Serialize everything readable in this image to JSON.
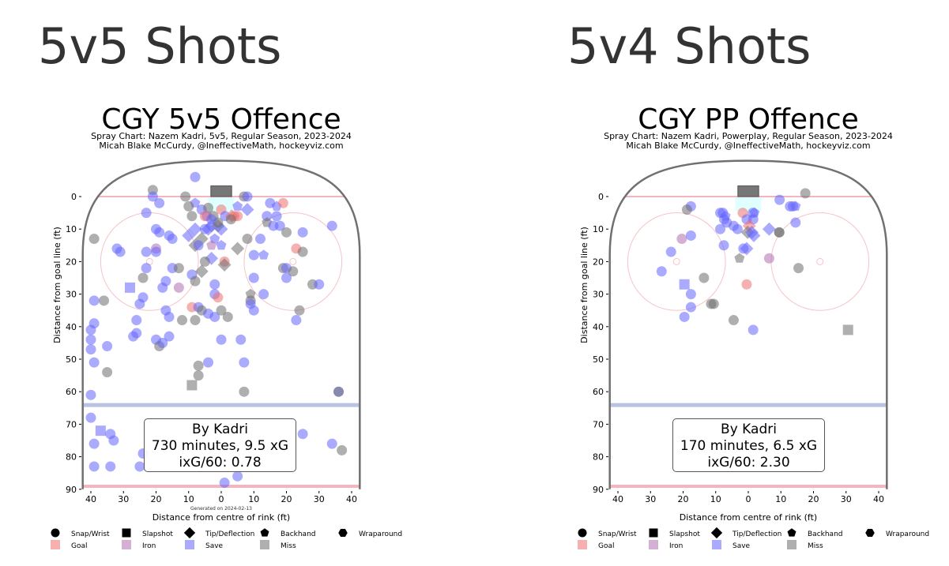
{
  "headings": [
    "5v5 Shots",
    "5v4 Shots"
  ],
  "colors": {
    "save": "#6464ff",
    "miss": "#6e6e6e",
    "goal": "#f07070",
    "iron": "#b070b0",
    "goal_line": "#f2b6c0",
    "blue_line": "#b8c4e0",
    "board": "#707070",
    "crease": "#e0ffff"
  },
  "legend": {
    "shapes": [
      {
        "key": "c",
        "label": "Snap/Wrist"
      },
      {
        "key": "s",
        "label": "Slapshot"
      },
      {
        "key": "d",
        "label": "Tip/Deflection"
      },
      {
        "key": "p",
        "label": "Backhand"
      },
      {
        "key": "h",
        "label": "Wraparound"
      }
    ],
    "outcomes": [
      {
        "key": "goal",
        "label": "Goal"
      },
      {
        "key": "iron",
        "label": "Iron"
      },
      {
        "key": "save",
        "label": "Save"
      },
      {
        "key": "miss",
        "label": "Miss"
      }
    ]
  },
  "chart_data": [
    {
      "type": "scatter",
      "title": "CGY 5v5 Offence",
      "subtitle1": "Spray Chart: Nazem Kadri, 5v5, Regular Season, 2023-2024",
      "subtitle2": "Micah Blake McCurdy, @IneffectiveMath, hockeyviz.com",
      "xlabel": "Distance from centre of rink (ft)",
      "ylabel": "Distance from goal line (ft)",
      "generated": "Generated on 2024-02-13",
      "xticks": [
        "40",
        "30",
        "20",
        "10",
        "0",
        "10",
        "20",
        "30",
        "40"
      ],
      "yticks": [
        "0",
        "10",
        "20",
        "30",
        "40",
        "50",
        "60",
        "70",
        "80",
        "90"
      ],
      "xlim": [
        -42.5,
        42.5
      ],
      "ylim": [
        -11,
        90
      ],
      "stats": [
        "By Kadri",
        "730 minutes, 9.5 xG",
        "ixG/60: 0.78"
      ],
      "points": [
        [
          -8,
          -6,
          "c",
          "save"
        ],
        [
          -21,
          -2,
          "c",
          "miss"
        ],
        [
          -21,
          0,
          "c",
          "save"
        ],
        [
          -19,
          2,
          "c",
          "save"
        ],
        [
          -11,
          0,
          "c",
          "miss"
        ],
        [
          7,
          0,
          "c",
          "miss"
        ],
        [
          8,
          0,
          "c",
          "save"
        ],
        [
          -8,
          2,
          "p",
          "save"
        ],
        [
          -10,
          3,
          "c",
          "miss"
        ],
        [
          -6,
          4,
          "c",
          "save"
        ],
        [
          -4,
          3.5,
          "c",
          "miss"
        ],
        [
          0,
          4,
          "c",
          "goal"
        ],
        [
          -9,
          6,
          "c",
          "miss"
        ],
        [
          -5,
          6,
          "c",
          "goal"
        ],
        [
          -4.4,
          6,
          "c",
          "iron"
        ],
        [
          -2.4,
          6,
          "c",
          "miss"
        ],
        [
          1.2,
          6,
          "c",
          "save"
        ],
        [
          3.2,
          6,
          "d",
          "goal"
        ],
        [
          4,
          6,
          "c",
          "goal"
        ],
        [
          5,
          6,
          "c",
          "goal"
        ],
        [
          3,
          7,
          "c",
          "miss"
        ],
        [
          5,
          3,
          "p",
          "save"
        ],
        [
          8,
          4,
          "d",
          "save"
        ],
        [
          15,
          2,
          "c",
          "save"
        ],
        [
          17,
          3,
          "p",
          "save"
        ],
        [
          19,
          2,
          "c",
          "goal"
        ],
        [
          14,
          6,
          "c",
          "save"
        ],
        [
          17,
          6,
          "c",
          "save"
        ],
        [
          14,
          8,
          "p",
          "miss"
        ],
        [
          16,
          9,
          "c",
          "save"
        ],
        [
          18,
          9,
          "c",
          "save"
        ],
        [
          20,
          11,
          "c",
          "miss"
        ],
        [
          25,
          11,
          "c",
          "save"
        ],
        [
          34,
          9,
          "c",
          "save"
        ],
        [
          -23,
          5,
          "c",
          "save"
        ],
        [
          -8,
          10,
          "d",
          "save"
        ],
        [
          -10,
          12,
          "d",
          "save"
        ],
        [
          -5,
          10,
          "c",
          "save"
        ],
        [
          -4,
          10,
          "d",
          "save"
        ],
        [
          -1,
          9,
          "d",
          "miss"
        ],
        [
          -3,
          9,
          "d",
          "save"
        ],
        [
          0,
          10,
          "d",
          "save"
        ],
        [
          -1,
          8,
          "c",
          "miss"
        ],
        [
          -3,
          7,
          "c",
          "save"
        ],
        [
          -20,
          10,
          "c",
          "save"
        ],
        [
          -19,
          11,
          "c",
          "save"
        ],
        [
          -16,
          12,
          "c",
          "save"
        ],
        [
          -15,
          13,
          "c",
          "save"
        ],
        [
          -39,
          13,
          "c",
          "miss"
        ],
        [
          -6,
          13,
          "d",
          "miss"
        ],
        [
          -8,
          15,
          "d",
          "miss"
        ],
        [
          -7,
          15,
          "c",
          "save"
        ],
        [
          -2,
          13,
          "p",
          "save"
        ],
        [
          -3,
          15,
          "p",
          "iron"
        ],
        [
          0,
          15,
          "p",
          "save"
        ],
        [
          8,
          13,
          "c",
          "miss"
        ],
        [
          12,
          13,
          "c",
          "save"
        ],
        [
          5,
          16,
          "d",
          "miss"
        ],
        [
          -32,
          16,
          "c",
          "save"
        ],
        [
          -31,
          17,
          "c",
          "save"
        ],
        [
          -20,
          16,
          "c",
          "iron"
        ],
        [
          -20,
          17,
          "c",
          "save"
        ],
        [
          -23,
          17,
          "c",
          "save"
        ],
        [
          10,
          18,
          "c",
          "save"
        ],
        [
          13,
          18,
          "p",
          "save"
        ],
        [
          23,
          16,
          "c",
          "goal"
        ],
        [
          25,
          17,
          "c",
          "miss"
        ],
        [
          -3,
          19,
          "d",
          "save"
        ],
        [
          1,
          20,
          "c",
          "goal"
        ],
        [
          1,
          21,
          "d",
          "miss"
        ],
        [
          -5,
          20,
          "c",
          "miss"
        ],
        [
          -6,
          23,
          "d",
          "miss"
        ],
        [
          -23,
          22,
          "c",
          "save"
        ],
        [
          -15,
          22,
          "c",
          "save"
        ],
        [
          -13,
          22,
          "c",
          "miss"
        ],
        [
          19,
          22,
          "c",
          "miss"
        ],
        [
          20,
          22,
          "c",
          "save"
        ],
        [
          22,
          23,
          "c",
          "miss"
        ],
        [
          -9,
          24,
          "c",
          "save"
        ],
        [
          -8,
          26,
          "c",
          "miss"
        ],
        [
          -24,
          25,
          "c",
          "miss"
        ],
        [
          10,
          25,
          "c",
          "save"
        ],
        [
          20,
          25,
          "c",
          "save"
        ],
        [
          -17,
          26,
          "c",
          "save"
        ],
        [
          -28,
          28,
          "s",
          "save"
        ],
        [
          -13,
          28,
          "c",
          "iron"
        ],
        [
          -18,
          28,
          "c",
          "save"
        ],
        [
          -2,
          27,
          "c",
          "save"
        ],
        [
          28,
          27,
          "c",
          "miss"
        ],
        [
          30,
          27,
          "c",
          "save"
        ],
        [
          -39,
          32,
          "c",
          "save"
        ],
        [
          -36,
          32,
          "c",
          "miss"
        ],
        [
          -24,
          31,
          "c",
          "save"
        ],
        [
          -25,
          33,
          "c",
          "save"
        ],
        [
          -2,
          30,
          "c",
          "save"
        ],
        [
          -1,
          31,
          "c",
          "goal"
        ],
        [
          9,
          30,
          "p",
          "miss"
        ],
        [
          9,
          32,
          "c",
          "miss"
        ],
        [
          9,
          33,
          "c",
          "save"
        ],
        [
          10,
          35,
          "c",
          "save"
        ],
        [
          13,
          30,
          "c",
          "save"
        ],
        [
          24,
          35,
          "c",
          "miss"
        ],
        [
          -17,
          35,
          "c",
          "save"
        ],
        [
          -16,
          37,
          "c",
          "save"
        ],
        [
          -9,
          34,
          "c",
          "goal"
        ],
        [
          -7,
          34,
          "c",
          "save"
        ],
        [
          -6,
          35,
          "c",
          "miss"
        ],
        [
          -4,
          36,
          "c",
          "save"
        ],
        [
          -2,
          37,
          "c",
          "save"
        ],
        [
          0,
          35,
          "c",
          "miss"
        ],
        [
          2,
          37,
          "c",
          "miss"
        ],
        [
          -26,
          38,
          "c",
          "save"
        ],
        [
          -12,
          38,
          "c",
          "miss"
        ],
        [
          -8,
          38,
          "c",
          "miss"
        ],
        [
          23,
          38,
          "c",
          "save"
        ],
        [
          -39,
          39,
          "c",
          "save"
        ],
        [
          -40,
          41,
          "c",
          "save"
        ],
        [
          -40,
          44,
          "c",
          "save"
        ],
        [
          -40,
          47,
          "c",
          "save"
        ],
        [
          -39,
          51,
          "c",
          "save"
        ],
        [
          -35,
          54,
          "c",
          "miss"
        ],
        [
          -35,
          46,
          "c",
          "save"
        ],
        [
          -27,
          43,
          "c",
          "save"
        ],
        [
          -26,
          42,
          "c",
          "save"
        ],
        [
          -20,
          44,
          "c",
          "save"
        ],
        [
          -19,
          46,
          "c",
          "miss"
        ],
        [
          -18,
          45,
          "c",
          "save"
        ],
        [
          -16,
          43,
          "c",
          "save"
        ],
        [
          0,
          44,
          "c",
          "save"
        ],
        [
          6,
          44,
          "c",
          "save"
        ],
        [
          -4,
          51,
          "c",
          "save"
        ],
        [
          -7,
          52,
          "c",
          "miss"
        ],
        [
          -7,
          55,
          "c",
          "miss"
        ],
        [
          -9,
          58,
          "s",
          "miss"
        ],
        [
          7,
          51,
          "c",
          "save"
        ],
        [
          7,
          60,
          "c",
          "miss"
        ],
        [
          -40,
          61,
          "c",
          "save"
        ],
        [
          36,
          60,
          "c",
          "save"
        ],
        [
          36,
          60,
          "c",
          "miss"
        ],
        [
          -40,
          68,
          "c",
          "save"
        ],
        [
          -39,
          76,
          "c",
          "save"
        ],
        [
          -37,
          72,
          "s",
          "save"
        ],
        [
          -34,
          73,
          "c",
          "save"
        ],
        [
          -33,
          75,
          "c",
          "save"
        ],
        [
          -39,
          83,
          "c",
          "save"
        ],
        [
          -34,
          83,
          "c",
          "save"
        ],
        [
          -25,
          83,
          "c",
          "save"
        ],
        [
          -24,
          79,
          "c",
          "save"
        ],
        [
          25,
          73,
          "c",
          "save"
        ],
        [
          34,
          76,
          "c",
          "save"
        ],
        [
          37,
          78,
          "c",
          "miss"
        ],
        [
          5,
          86,
          "c",
          "save"
        ],
        [
          1,
          88,
          "c",
          "save"
        ]
      ]
    },
    {
      "type": "scatter",
      "title": "CGY PP Offence",
      "subtitle1": "Spray Chart: Nazem Kadri, Powerplay, Regular Season, 2023-2024",
      "subtitle2": "Micah Blake McCurdy, @IneffectiveMath, hockeyviz.com",
      "xlabel": "Distance from centre of rink (ft)",
      "ylabel": "Distance from goal line (ft)",
      "xticks": [
        "40",
        "30",
        "20",
        "10",
        "0",
        "10",
        "20",
        "30",
        "40"
      ],
      "yticks": [
        "0",
        "10",
        "20",
        "30",
        "40",
        "50",
        "60",
        "70",
        "80",
        "90"
      ],
      "xlim": [
        -42.5,
        42.5
      ],
      "ylim": [
        -11,
        90
      ],
      "stats": [
        "By Kadri",
        "170 minutes, 6.5 xG",
        "ixG/60: 2.30"
      ],
      "points": [
        [
          17.5,
          -1,
          "c",
          "miss"
        ],
        [
          9.6,
          1,
          "c",
          "save"
        ],
        [
          12.8,
          3,
          "c",
          "save"
        ],
        [
          13.7,
          3,
          "c",
          "save"
        ],
        [
          14.5,
          3,
          "p",
          "save"
        ],
        [
          14.5,
          8,
          "c",
          "save"
        ],
        [
          9.5,
          11,
          "c",
          "miss"
        ],
        [
          9.5,
          11,
          "c",
          "miss"
        ],
        [
          6.4,
          10,
          "d",
          "save"
        ],
        [
          6.4,
          19,
          "c",
          "iron"
        ],
        [
          15.4,
          22,
          "c",
          "miss"
        ],
        [
          30.6,
          41,
          "s",
          "miss"
        ],
        [
          1.5,
          41,
          "c",
          "save"
        ],
        [
          -4.5,
          38,
          "c",
          "miss"
        ],
        [
          -11.4,
          33,
          "c",
          "miss"
        ],
        [
          -10.6,
          33,
          "c",
          "miss"
        ],
        [
          -17.6,
          30,
          "c",
          "save"
        ],
        [
          -17.6,
          34,
          "c",
          "save"
        ],
        [
          -19.6,
          37,
          "c",
          "save"
        ],
        [
          -19.6,
          27,
          "s",
          "save"
        ],
        [
          -13.6,
          25,
          "c",
          "miss"
        ],
        [
          -26.6,
          23,
          "c",
          "save"
        ],
        [
          -23.7,
          17,
          "c",
          "save"
        ],
        [
          -20.4,
          13,
          "c",
          "iron"
        ],
        [
          -17.6,
          12,
          "c",
          "save"
        ],
        [
          -17.6,
          3,
          "c",
          "save"
        ],
        [
          -18.8,
          4,
          "c",
          "miss"
        ],
        [
          -8.6,
          5,
          "c",
          "save"
        ],
        [
          -7.8,
          5,
          "c",
          "save"
        ],
        [
          -7,
          6,
          "p",
          "save"
        ],
        [
          -7.4,
          7,
          "c",
          "save"
        ],
        [
          -6.6,
          8,
          "c",
          "save"
        ],
        [
          -8.6,
          10,
          "c",
          "save"
        ],
        [
          -4.5,
          9,
          "c",
          "save"
        ],
        [
          -3.3,
          10,
          "c",
          "save"
        ],
        [
          -7.5,
          15,
          "c",
          "save"
        ],
        [
          -1.7,
          5,
          "c",
          "goal"
        ],
        [
          1.9,
          5,
          "p",
          "save"
        ],
        [
          1.4,
          5,
          "c",
          "save"
        ],
        [
          -0.5,
          7,
          "c",
          "save"
        ],
        [
          1.5,
          7,
          "c",
          "save"
        ],
        [
          0.3,
          9,
          "d",
          "goal"
        ],
        [
          -0.2,
          11,
          "d",
          "miss"
        ],
        [
          1.1,
          11,
          "d",
          "save"
        ],
        [
          1.7,
          12,
          "d",
          "save"
        ],
        [
          -0.5,
          16,
          "d",
          "save"
        ],
        [
          -1.5,
          16,
          "c",
          "save"
        ],
        [
          -2.7,
          19,
          "p",
          "miss"
        ],
        [
          -0.5,
          27,
          "c",
          "goal"
        ]
      ]
    }
  ]
}
